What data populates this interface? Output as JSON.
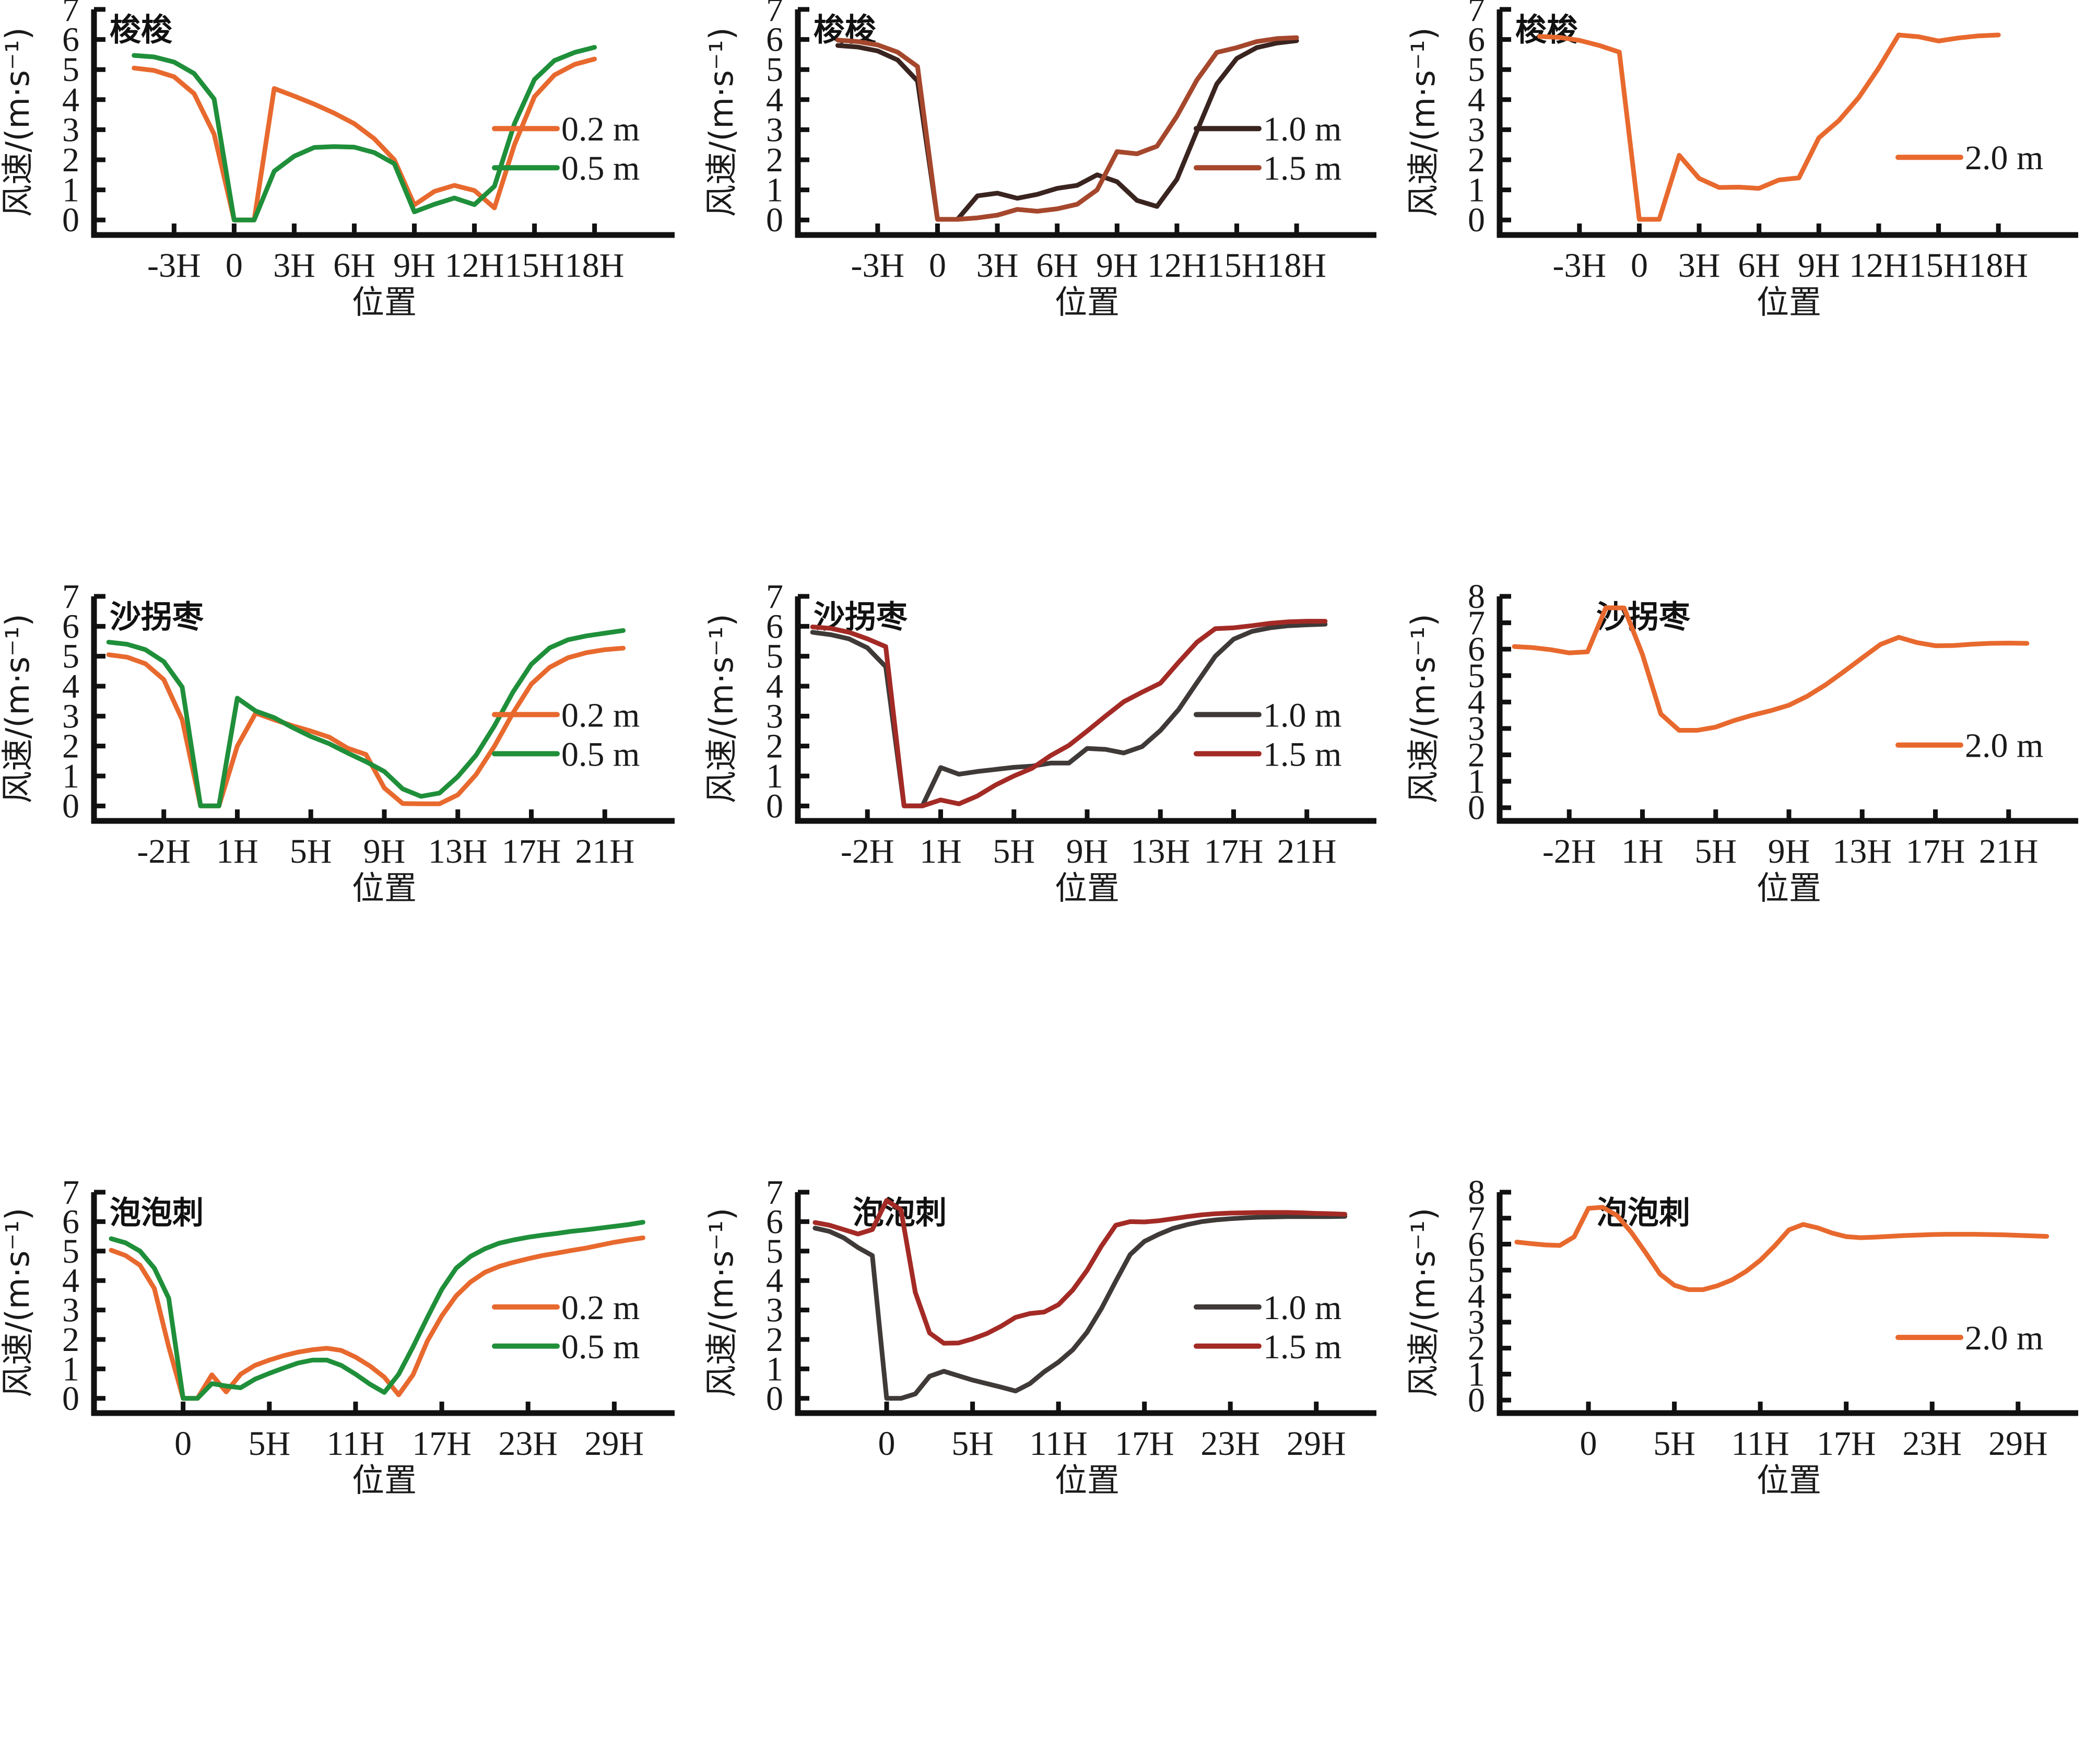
{
  "figure": {
    "xlabel": "位置",
    "ylabel": "风速/(m·s⁻¹)"
  },
  "chart_data": [
    {
      "type": "line",
      "title": "梭梭",
      "xlabel": "位置",
      "ylabel": "风速/(m·s⁻¹)",
      "ylim": [
        -0.5,
        7
      ],
      "yticks": [
        0,
        1,
        2,
        3,
        4,
        5,
        6,
        7
      ],
      "x_index_range": [
        -7,
        22
      ],
      "xticks": [
        {
          "i": -3,
          "label": "-3H"
        },
        {
          "i": 0,
          "label": "0"
        },
        {
          "i": 3,
          "label": "3H"
        },
        {
          "i": 6,
          "label": "6H"
        },
        {
          "i": 9,
          "label": "9H"
        },
        {
          "i": 12,
          "label": "12H"
        },
        {
          "i": 15,
          "label": "15H"
        },
        {
          "i": 18,
          "label": "18H"
        }
      ],
      "x_start": -5,
      "legend": "bottom-right",
      "series": [
        {
          "name": "0.2 m",
          "color": "#e8692e",
          "values": [
            5.05,
            4.97,
            4.76,
            4.2,
            2.85,
            0.0,
            0.0,
            4.37,
            4.12,
            3.85,
            3.55,
            3.2,
            2.7,
            2.0,
            0.5,
            0.95,
            1.15,
            0.98,
            0.4,
            2.5,
            4.1,
            4.82,
            5.17,
            5.35
          ]
        },
        {
          "name": "0.5 m",
          "color": "#1f8f3a",
          "values": [
            5.47,
            5.42,
            5.25,
            4.87,
            4.02,
            0.0,
            0.0,
            1.62,
            2.12,
            2.41,
            2.44,
            2.42,
            2.24,
            1.87,
            0.27,
            0.52,
            0.73,
            0.51,
            1.12,
            3.2,
            4.67,
            5.3,
            5.57,
            5.74
          ]
        }
      ]
    },
    {
      "type": "line",
      "title": "梭梭",
      "xlabel": "位置",
      "ylabel": "风速/(m·s⁻¹)",
      "ylim": [
        -0.5,
        7
      ],
      "yticks": [
        0,
        1,
        2,
        3,
        4,
        5,
        6,
        7
      ],
      "x_index_range": [
        -7,
        22
      ],
      "xticks": [
        {
          "i": -3,
          "label": "-3H"
        },
        {
          "i": 0,
          "label": "0"
        },
        {
          "i": 3,
          "label": "3H"
        },
        {
          "i": 6,
          "label": "6H"
        },
        {
          "i": 9,
          "label": "9H"
        },
        {
          "i": 12,
          "label": "12H"
        },
        {
          "i": 15,
          "label": "15H"
        },
        {
          "i": 18,
          "label": "18H"
        }
      ],
      "x_start": -5,
      "legend": "bottom-right",
      "series": [
        {
          "name": "1.0 m",
          "color": "#3a2420",
          "values": [
            5.8,
            5.75,
            5.62,
            5.32,
            4.62,
            0.02,
            0.02,
            0.8,
            0.89,
            0.72,
            0.85,
            1.05,
            1.15,
            1.5,
            1.27,
            0.65,
            0.45,
            1.35,
            2.95,
            4.52,
            5.37,
            5.73,
            5.88,
            5.96
          ]
        },
        {
          "name": "1.5 m",
          "color": "#a5472c",
          "values": [
            5.98,
            5.93,
            5.82,
            5.58,
            5.1,
            0.02,
            0.02,
            0.07,
            0.16,
            0.35,
            0.29,
            0.37,
            0.52,
            1.0,
            2.27,
            2.2,
            2.45,
            3.45,
            4.65,
            5.57,
            5.73,
            5.93,
            6.03,
            6.06
          ]
        }
      ]
    },
    {
      "type": "line",
      "title": "梭梭",
      "xlabel": "位置",
      "ylabel": "风速/(m·s⁻¹)",
      "ylim": [
        -0.5,
        7
      ],
      "yticks": [
        0,
        1,
        2,
        3,
        4,
        5,
        6,
        7
      ],
      "x_index_range": [
        -7,
        22
      ],
      "xticks": [
        {
          "i": -3,
          "label": "-3H"
        },
        {
          "i": 0,
          "label": "0"
        },
        {
          "i": 3,
          "label": "3H"
        },
        {
          "i": 6,
          "label": "6H"
        },
        {
          "i": 9,
          "label": "9H"
        },
        {
          "i": 12,
          "label": "12H"
        },
        {
          "i": 15,
          "label": "15H"
        },
        {
          "i": 18,
          "label": "18H"
        }
      ],
      "x_start": -5,
      "legend": "bottom-right",
      "series": [
        {
          "name": "2.0 m",
          "color": "#e8692e",
          "values": [
            6.1,
            6.07,
            5.97,
            5.8,
            5.58,
            0.02,
            0.02,
            2.15,
            1.38,
            1.08,
            1.09,
            1.05,
            1.33,
            1.4,
            2.73,
            3.3,
            4.07,
            5.05,
            6.15,
            6.09,
            5.95,
            6.05,
            6.12,
            6.15
          ]
        }
      ]
    },
    {
      "type": "line",
      "title": "沙拐枣",
      "xlabel": "位置",
      "ylabel": "风速/(m·s⁻¹)",
      "ylim": [
        -0.5,
        7
      ],
      "yticks": [
        0,
        1,
        2,
        3,
        4,
        5,
        6,
        7
      ],
      "x_index_range": [
        -5.8,
        25.8
      ],
      "xticks": [
        {
          "i": -2,
          "label": "-2H"
        },
        {
          "i": 2,
          "label": "1H"
        },
        {
          "i": 6,
          "label": "5H"
        },
        {
          "i": 10,
          "label": "9H"
        },
        {
          "i": 14,
          "label": "13H"
        },
        {
          "i": 18,
          "label": "17H"
        },
        {
          "i": 22,
          "label": "21H"
        }
      ],
      "x_start": -5,
      "legend": "bottom-right",
      "series": [
        {
          "name": "0.2 m",
          "color": "#e8692e",
          "values": [
            5.05,
            4.97,
            4.75,
            4.22,
            2.88,
            0.0,
            0.0,
            2.0,
            3.1,
            2.88,
            2.68,
            2.5,
            2.3,
            1.93,
            1.72,
            0.6,
            0.08,
            0.07,
            0.07,
            0.37,
            1.05,
            2.0,
            3.1,
            4.07,
            4.63,
            4.95,
            5.12,
            5.22,
            5.27
          ]
        },
        {
          "name": "0.5 m",
          "color": "#1f8f3a",
          "values": [
            5.47,
            5.4,
            5.22,
            4.82,
            3.97,
            0.0,
            0.0,
            3.6,
            3.17,
            2.95,
            2.62,
            2.32,
            2.08,
            1.77,
            1.48,
            1.15,
            0.57,
            0.32,
            0.43,
            0.98,
            1.7,
            2.68,
            3.8,
            4.73,
            5.28,
            5.55,
            5.68,
            5.77,
            5.86
          ]
        }
      ]
    },
    {
      "type": "line",
      "title": "沙拐枣",
      "xlabel": "位置",
      "ylabel": "风速/(m·s⁻¹)",
      "ylim": [
        -0.5,
        7
      ],
      "yticks": [
        0,
        1,
        2,
        3,
        4,
        5,
        6,
        7
      ],
      "x_index_range": [
        -5.8,
        25.8
      ],
      "xticks": [
        {
          "i": -2,
          "label": "-2H"
        },
        {
          "i": 2,
          "label": "1H"
        },
        {
          "i": 6,
          "label": "5H"
        },
        {
          "i": 10,
          "label": "9H"
        },
        {
          "i": 14,
          "label": "13H"
        },
        {
          "i": 18,
          "label": "17H"
        },
        {
          "i": 22,
          "label": "21H"
        }
      ],
      "x_start": -5,
      "legend": "bottom-right",
      "series": [
        {
          "name": "1.0 m",
          "color": "#3f3a38",
          "values": [
            5.8,
            5.72,
            5.58,
            5.28,
            4.65,
            0.0,
            0.0,
            1.28,
            1.06,
            1.15,
            1.22,
            1.29,
            1.33,
            1.43,
            1.43,
            1.92,
            1.89,
            1.77,
            1.98,
            2.52,
            3.22,
            4.12,
            5.0,
            5.57,
            5.83,
            5.95,
            6.02,
            6.05,
            6.07
          ]
        },
        {
          "name": "1.5 m",
          "color": "#a32a25",
          "values": [
            5.98,
            5.93,
            5.8,
            5.58,
            5.32,
            0.0,
            0.0,
            0.2,
            0.07,
            0.33,
            0.7,
            1.0,
            1.26,
            1.68,
            2.02,
            2.5,
            3.0,
            3.48,
            3.8,
            4.1,
            4.8,
            5.47,
            5.92,
            5.95,
            6.02,
            6.1,
            6.15,
            6.17,
            6.17
          ]
        }
      ]
    },
    {
      "type": "line",
      "title": "沙拐枣",
      "xlabel": "位置",
      "ylabel": "风速/(m·s⁻¹)",
      "ylim": [
        -0.5,
        8
      ],
      "yticks": [
        0,
        1,
        2,
        3,
        4,
        5,
        6,
        7,
        8
      ],
      "x_index_range": [
        -5.8,
        25.8
      ],
      "xticks": [
        {
          "i": -2,
          "label": "-2H"
        },
        {
          "i": 2,
          "label": "1H"
        },
        {
          "i": 6,
          "label": "5H"
        },
        {
          "i": 10,
          "label": "9H"
        },
        {
          "i": 14,
          "label": "13H"
        },
        {
          "i": 18,
          "label": "17H"
        },
        {
          "i": 22,
          "label": "21H"
        }
      ],
      "x_start": -5,
      "legend": "bottom-right",
      "series": [
        {
          "name": "2.0 m",
          "color": "#e8692e",
          "values": [
            6.1,
            6.06,
            5.98,
            5.86,
            5.9,
            7.57,
            7.56,
            5.8,
            3.55,
            2.93,
            2.93,
            3.05,
            3.3,
            3.5,
            3.67,
            3.88,
            4.22,
            4.65,
            5.15,
            5.67,
            6.18,
            6.45,
            6.25,
            6.13,
            6.14,
            6.19,
            6.22,
            6.23,
            6.22
          ]
        }
      ]
    },
    {
      "type": "line",
      "title": "泡泡刺",
      "xlabel": "位置",
      "ylabel": "风速/(m·s⁻¹)",
      "ylim": [
        -0.5,
        7
      ],
      "yticks": [
        0,
        1,
        2,
        3,
        4,
        5,
        6,
        7
      ],
      "x_index_range": [
        -6.2,
        34.2
      ],
      "xticks": [
        {
          "i": 0,
          "label": "0"
        },
        {
          "i": 6,
          "label": "5H"
        },
        {
          "i": 12,
          "label": "11H"
        },
        {
          "i": 18,
          "label": "17H"
        },
        {
          "i": 24,
          "label": "23H"
        },
        {
          "i": 30,
          "label": "29H"
        }
      ],
      "x_start": -5,
      "legend": "bottom-right",
      "series": [
        {
          "name": "0.2 m",
          "color": "#e8692e",
          "values": [
            5.03,
            4.85,
            4.52,
            3.73,
            1.75,
            0.0,
            0.0,
            0.8,
            0.22,
            0.82,
            1.12,
            1.3,
            1.45,
            1.57,
            1.65,
            1.7,
            1.63,
            1.4,
            1.1,
            0.72,
            0.12,
            0.8,
            1.95,
            2.8,
            3.48,
            3.95,
            4.28,
            4.48,
            4.62,
            4.74,
            4.85,
            4.93,
            5.02,
            5.1,
            5.2,
            5.3,
            5.38,
            5.45
          ]
        },
        {
          "name": "0.5 m",
          "color": "#1f8f3a",
          "values": [
            5.42,
            5.28,
            5.0,
            4.42,
            3.4,
            0.0,
            0.0,
            0.5,
            0.42,
            0.36,
            0.65,
            0.85,
            1.03,
            1.2,
            1.3,
            1.3,
            1.12,
            0.82,
            0.48,
            0.2,
            0.82,
            1.75,
            2.75,
            3.7,
            4.42,
            4.82,
            5.08,
            5.27,
            5.38,
            5.47,
            5.54,
            5.6,
            5.67,
            5.72,
            5.78,
            5.84,
            5.9,
            5.98
          ]
        }
      ]
    },
    {
      "type": "line",
      "title": "泡泡刺",
      "xlabel": "位置",
      "ylabel": "风速/(m·s⁻¹)",
      "ylim": [
        -0.5,
        7
      ],
      "yticks": [
        0,
        1,
        2,
        3,
        4,
        5,
        6,
        7
      ],
      "x_index_range": [
        -6.2,
        34.2
      ],
      "xticks": [
        {
          "i": 0,
          "label": "0"
        },
        {
          "i": 6,
          "label": "5H"
        },
        {
          "i": 12,
          "label": "11H"
        },
        {
          "i": 18,
          "label": "17H"
        },
        {
          "i": 24,
          "label": "23H"
        },
        {
          "i": 30,
          "label": "29H"
        }
      ],
      "x_start": -5,
      "legend": "bottom-right",
      "series": [
        {
          "name": "1.0 m",
          "color": "#3f3a38",
          "values": [
            5.78,
            5.67,
            5.45,
            5.12,
            4.85,
            0.0,
            0.0,
            0.15,
            0.75,
            0.92,
            0.77,
            0.62,
            0.5,
            0.38,
            0.25,
            0.5,
            0.9,
            1.23,
            1.65,
            2.25,
            3.05,
            3.98,
            4.88,
            5.33,
            5.57,
            5.77,
            5.9,
            6.0,
            6.06,
            6.1,
            6.13,
            6.15,
            6.16,
            6.17,
            6.17,
            6.17,
            6.17,
            6.18
          ]
        },
        {
          "name": "1.5 m",
          "color": "#a32a25",
          "values": [
            5.97,
            5.88,
            5.73,
            5.58,
            5.73,
            6.72,
            6.4,
            3.6,
            2.22,
            1.87,
            1.88,
            2.02,
            2.2,
            2.45,
            2.75,
            2.88,
            2.93,
            3.18,
            3.68,
            4.35,
            5.17,
            5.88,
            6.0,
            5.99,
            6.03,
            6.1,
            6.17,
            6.23,
            6.27,
            6.29,
            6.3,
            6.31,
            6.31,
            6.31,
            6.3,
            6.28,
            6.27,
            6.25
          ]
        }
      ]
    },
    {
      "type": "line",
      "title": "泡泡刺",
      "xlabel": "位置",
      "ylabel": "风速/(m·s⁻¹)",
      "ylim": [
        -0.5,
        8
      ],
      "yticks": [
        0,
        1,
        2,
        3,
        4,
        5,
        6,
        7,
        8
      ],
      "x_index_range": [
        -6.2,
        34.2
      ],
      "xticks": [
        {
          "i": 0,
          "label": "0"
        },
        {
          "i": 6,
          "label": "5H"
        },
        {
          "i": 12,
          "label": "11H"
        },
        {
          "i": 18,
          "label": "17H"
        },
        {
          "i": 24,
          "label": "23H"
        },
        {
          "i": 30,
          "label": "29H"
        }
      ],
      "x_start": -5,
      "legend": "bottom-right",
      "series": [
        {
          "name": "2.0 m",
          "color": "#e8692e",
          "values": [
            6.08,
            6.02,
            5.97,
            5.95,
            6.28,
            7.38,
            7.42,
            7.1,
            6.45,
            5.67,
            4.85,
            4.42,
            4.25,
            4.25,
            4.4,
            4.62,
            4.95,
            5.38,
            5.93,
            6.55,
            6.76,
            6.63,
            6.43,
            6.29,
            6.25,
            6.27,
            6.3,
            6.33,
            6.35,
            6.37,
            6.38,
            6.38,
            6.38,
            6.37,
            6.36,
            6.34,
            6.32,
            6.3
          ]
        }
      ]
    }
  ]
}
